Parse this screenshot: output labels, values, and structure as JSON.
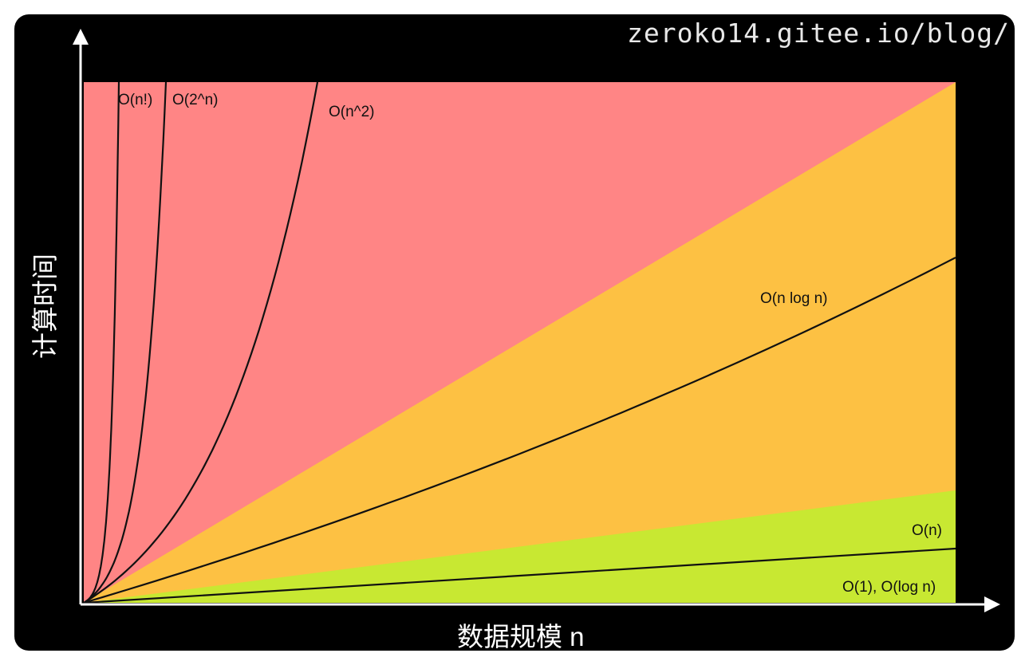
{
  "watermark": "zeroko14.gitee.io/blog/",
  "chart_data": {
    "type": "area",
    "title": "",
    "xlabel": "数据规模 n",
    "ylabel": "计算时间",
    "grid": false,
    "legend": "none",
    "regions": [
      {
        "name": "red",
        "color": "#ff8585"
      },
      {
        "name": "orange",
        "color": "#fdc143"
      },
      {
        "name": "green",
        "color": "#c8e832"
      }
    ],
    "series": [
      {
        "name": "O(n!)",
        "label": "O(n!)"
      },
      {
        "name": "O(2^n)",
        "label": "O(2^n)"
      },
      {
        "name": "O(n^2)",
        "label": "O(n^2)"
      },
      {
        "name": "O(n log n)",
        "label": "O(n log n)"
      },
      {
        "name": "O(n)",
        "label": "O(n)"
      },
      {
        "name": "O(1), O(log n)",
        "label": "O(1), O(log n)"
      }
    ],
    "colors": {
      "background": "#000000",
      "axis": "#ffffff",
      "curve": "#111111"
    }
  }
}
